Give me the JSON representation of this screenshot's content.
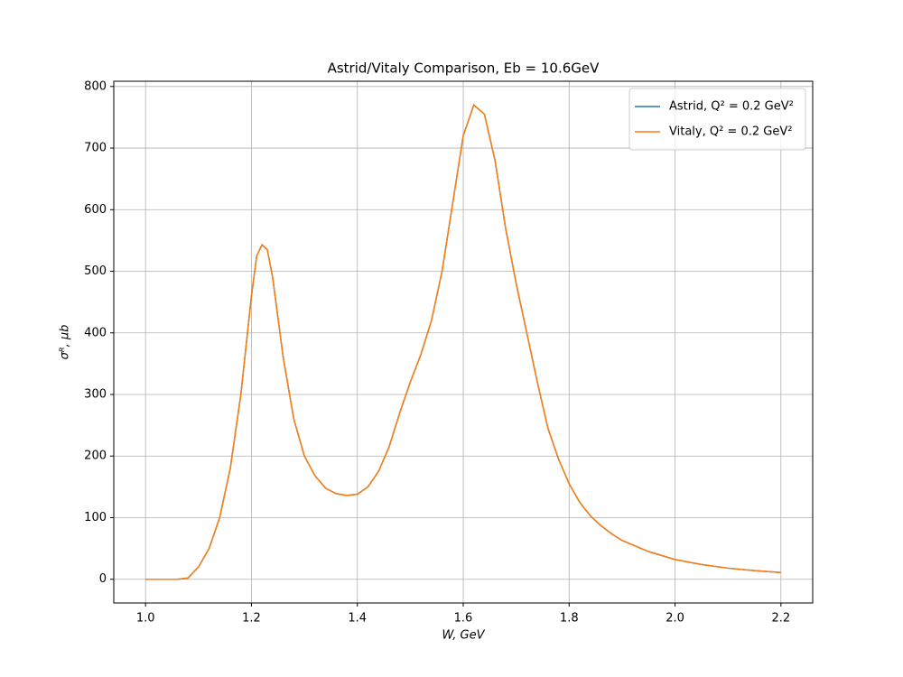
{
  "chart_data": {
    "type": "line",
    "title": "Astrid/Vitaly Comparison, Eb = 10.6GeV",
    "x_label": "W, GeV",
    "y_label": "σᴿ, μb",
    "x": [
      1.0,
      1.02,
      1.04,
      1.06,
      1.08,
      1.1,
      1.12,
      1.14,
      1.16,
      1.18,
      1.2,
      1.21,
      1.22,
      1.23,
      1.24,
      1.26,
      1.28,
      1.3,
      1.32,
      1.34,
      1.36,
      1.38,
      1.4,
      1.42,
      1.44,
      1.46,
      1.48,
      1.5,
      1.52,
      1.54,
      1.56,
      1.58,
      1.6,
      1.62,
      1.64,
      1.66,
      1.68,
      1.7,
      1.72,
      1.74,
      1.76,
      1.78,
      1.8,
      1.82,
      1.84,
      1.86,
      1.88,
      1.9,
      1.95,
      2.0,
      2.05,
      2.1,
      2.15,
      2.2
    ],
    "series": [
      {
        "name": "Astrid, Q² = 0.2 GeV²",
        "color": "#1f77b4",
        "values": [
          0,
          0,
          0,
          0,
          2,
          20,
          50,
          100,
          180,
          300,
          460,
          525,
          543,
          535,
          490,
          360,
          260,
          200,
          168,
          148,
          139,
          136,
          138,
          150,
          175,
          215,
          270,
          320,
          365,
          420,
          500,
          610,
          720,
          770,
          755,
          680,
          570,
          480,
          400,
          320,
          245,
          195,
          155,
          125,
          103,
          87,
          74,
          63,
          45,
          32,
          24,
          18,
          14,
          11
        ]
      },
      {
        "name": "Vitaly, Q² = 0.2 GeV²",
        "color": "#ff7f0e",
        "values": [
          0,
          0,
          0,
          0,
          2,
          20,
          50,
          100,
          180,
          300,
          460,
          525,
          543,
          535,
          490,
          360,
          260,
          200,
          168,
          148,
          139,
          136,
          138,
          150,
          175,
          215,
          270,
          320,
          365,
          420,
          500,
          610,
          720,
          770,
          755,
          680,
          570,
          480,
          400,
          320,
          245,
          195,
          155,
          125,
          103,
          87,
          74,
          63,
          45,
          32,
          24,
          18,
          14,
          11
        ]
      }
    ],
    "xlim": [
      0.94,
      2.26
    ],
    "ylim": [
      -38.5,
      808.5
    ],
    "xticks": [
      {
        "value": 1,
        "label": "1.0"
      },
      1.2,
      1.4,
      1.6,
      1.8,
      {
        "value": 2,
        "label": "2.0"
      },
      2.2
    ],
    "yticks": [
      0,
      100,
      200,
      300,
      400,
      500,
      600,
      700,
      800
    ],
    "grid": true,
    "legend": "upper-right"
  }
}
